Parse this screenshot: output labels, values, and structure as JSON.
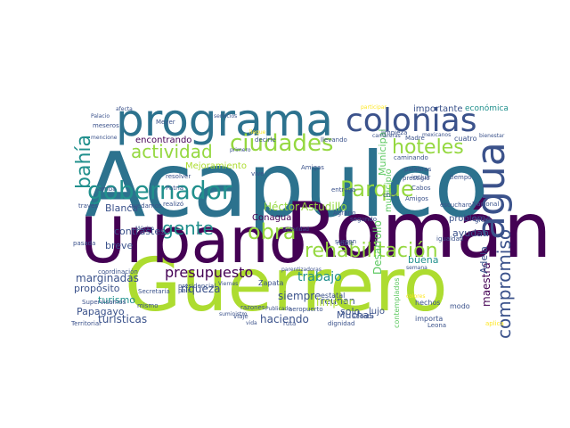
{
  "palette": {
    "dark_purple": "#440154",
    "indigo": "#3b528b",
    "teal": "#21908d",
    "blue": "#2c728e",
    "green": "#5ec962",
    "lime": "#addc30",
    "yellow": "#fde725",
    "light_green": "#95d840"
  },
  "words": [
    "Acapulco",
    "Román",
    "Guerrero",
    "Urbano",
    "programa",
    "colonias",
    "agua",
    "ciudades",
    "gobernador",
    "obra",
    "Parque",
    "rehabilitación",
    "hoteles",
    "bahía",
    "actividad",
    "gente",
    "compromiso",
    "presupuesto",
    "Héctor",
    "Astudillo",
    "trabajo",
    "Blanca",
    "encontrando",
    "riqueza",
    "propósito",
    "turismo",
    "Papagayo",
    "turísticas",
    "marginadas",
    "breve",
    "contrastes",
    "Conagua",
    "reúnan",
    "solo",
    "buena",
    "ayudan",
    "maestra",
    "Adela",
    "importante",
    "económica",
    "problema",
    "Cabos",
    "municipio",
    "Desarrollo",
    "Mejoramiento",
    "Municipal",
    "contemplados",
    "siempre",
    "haciendo",
    "Muchas",
    "limpiar",
    "lujo",
    "Zapata",
    "estatal",
    "hechos",
    "importa",
    "modo",
    "Leona",
    "aplica",
    "Sedatu",
    "dignidad",
    "ruta",
    "aeropuerto",
    "razones",
    "mismo",
    "viaje",
    "Territorial",
    "Supervisamos",
    "Secretaría",
    "coordinación",
    "realizó",
    "quedamos",
    "México",
    "presidencial",
    "cuatro",
    "Madre",
    "Nacional",
    "tiempo",
    "gran",
    "servicios",
    "Meyer",
    "primero",
    "decirle",
    "llevando",
    "camareras",
    "mexicanos",
    "bienestar",
    "participar",
    "llegue",
    "Palacio",
    "meseros",
    "afecta",
    "mencione",
    "resolver",
    "Patria",
    "través",
    "arriba",
    "pasada",
    "igualdad",
    "semana",
    "Amigas",
    "Amigos",
    "noble",
    "entrega",
    "segundo",
    "Agrario",
    "chef",
    "colores",
    "incluir",
    "palabras",
    "prestigio",
    "limpieza",
    "caminando",
    "escucharon",
    "surgen",
    "Viernes",
    "país",
    "suministro",
    "Publicado",
    "parentizadoras",
    "autoridad",
    "vida",
    "vive"
  ]
}
